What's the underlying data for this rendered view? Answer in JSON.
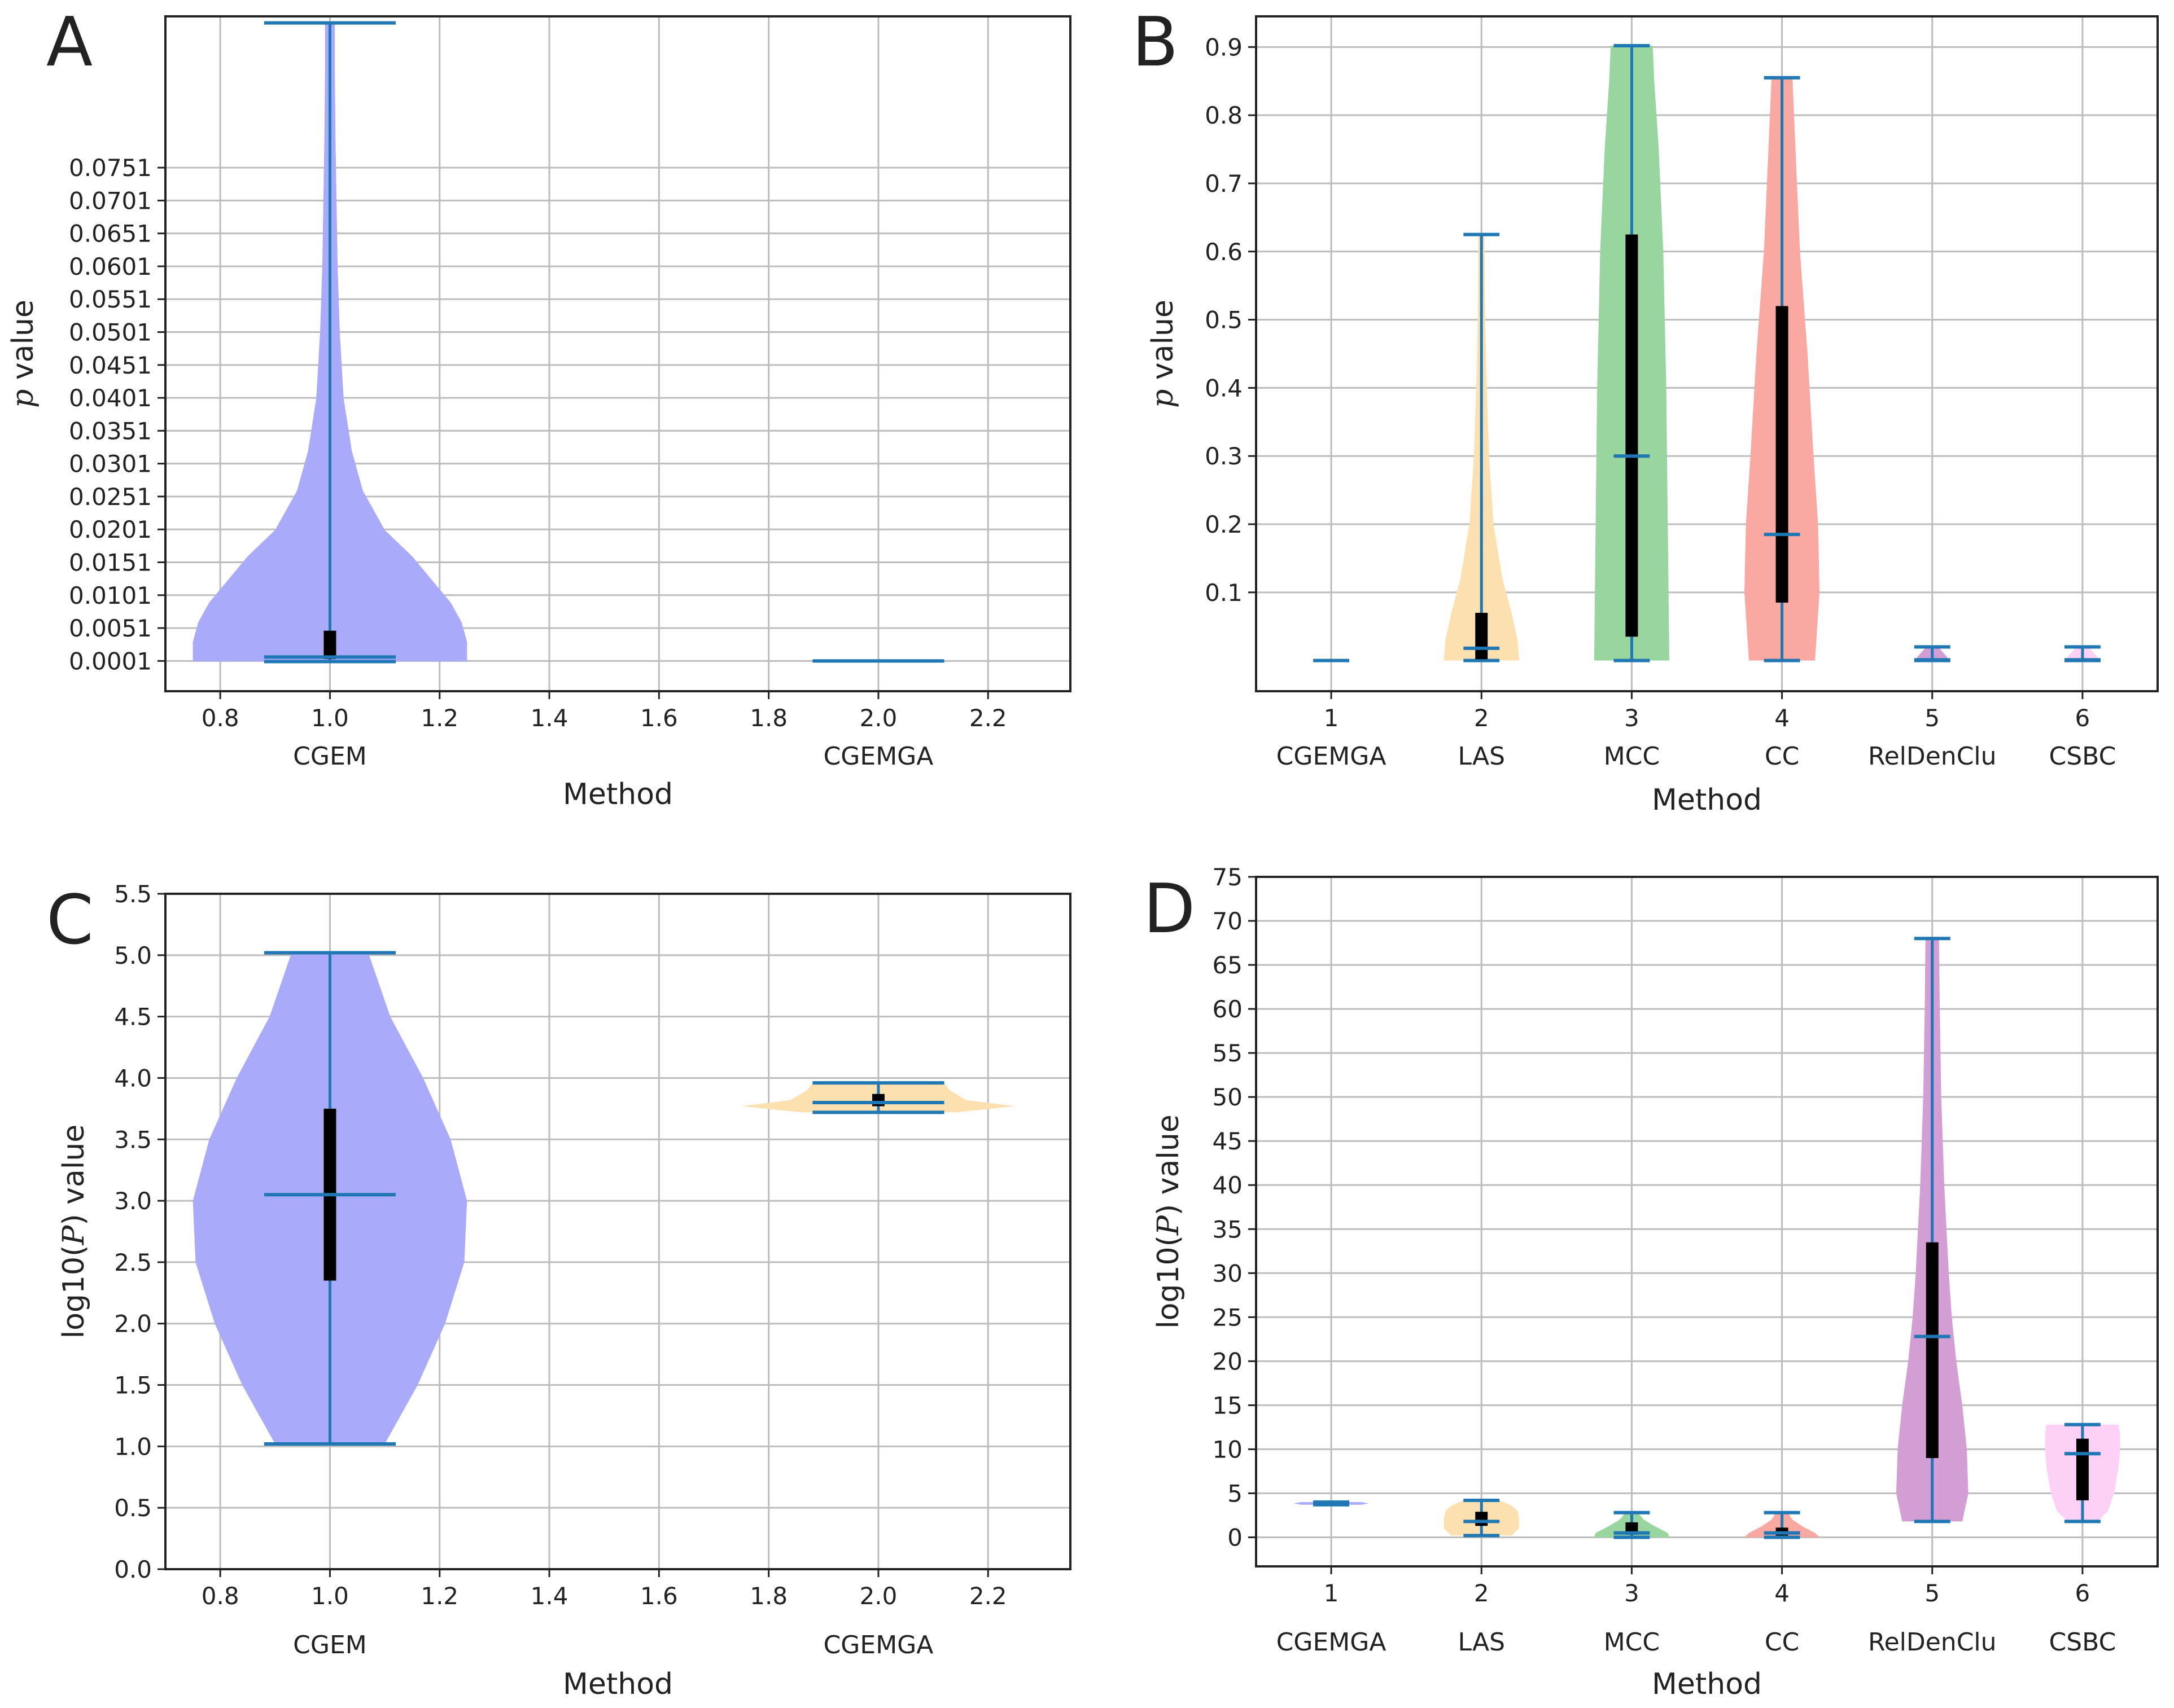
{
  "colors": {
    "whisker": "#1f77b4",
    "box": "#000000",
    "grid": "#bdbdbd",
    "frame": "#222222"
  },
  "chart_data": [
    {
      "panel": "A",
      "type": "violin",
      "xlabel": "Method",
      "ylabel": "p value",
      "ylabel_italic": "p",
      "ylabel_rest": " value",
      "xlim": [
        0.7,
        2.35
      ],
      "xticks": [
        0.8,
        1.0,
        1.2,
        1.4,
        1.6,
        1.8,
        2.0,
        2.2
      ],
      "xtick_labels": [
        "0.8",
        "1.0",
        "1.2",
        "1.4",
        "1.6",
        "1.8",
        "2.0",
        "2.2"
      ],
      "ylim": [
        -0.0045,
        0.0981
      ],
      "yticks": [
        0.0001,
        0.0051,
        0.0101,
        0.0151,
        0.0201,
        0.0251,
        0.0301,
        0.0351,
        0.0401,
        0.0451,
        0.0501,
        0.0551,
        0.0601,
        0.0651,
        0.0701,
        0.0751
      ],
      "ytick_labels": [
        "0.0001",
        "0.0051",
        "0.0101",
        "0.0151",
        "0.0201",
        "0.0251",
        "0.0301",
        "0.0351",
        "0.0401",
        "0.0451",
        "0.0501",
        "0.0551",
        "0.0601",
        "0.0651",
        "0.0701",
        "0.0751"
      ],
      "grid": true,
      "violins": [
        {
          "pos": 1,
          "category": "CGEM",
          "color": "#aaaafa",
          "min": 0.0,
          "max": 0.0971,
          "median": 0.0007,
          "q1": 0.0004,
          "q3": 0.0047,
          "cap_half_width": 0.12,
          "profile": [
            [
              0.0,
              0.25
            ],
            [
              0.003,
              0.25
            ],
            [
              0.006,
              0.24
            ],
            [
              0.009,
              0.22
            ],
            [
              0.012,
              0.19
            ],
            [
              0.016,
              0.15
            ],
            [
              0.02,
              0.1
            ],
            [
              0.026,
              0.06
            ],
            [
              0.032,
              0.04
            ],
            [
              0.04,
              0.025
            ],
            [
              0.05,
              0.018
            ],
            [
              0.06,
              0.014
            ],
            [
              0.07,
              0.012
            ],
            [
              0.08,
              0.01
            ],
            [
              0.09,
              0.009
            ],
            [
              0.0971,
              0.009
            ]
          ]
        },
        {
          "pos": 2,
          "category": "CGEMGA",
          "color": "#fde0b0",
          "min": 0.0001,
          "max": 0.0001,
          "cap_half_width": 0.12
        }
      ]
    },
    {
      "panel": "B",
      "type": "violin",
      "xlabel": "Method",
      "ylabel": "p value",
      "ylabel_italic": "p",
      "ylabel_rest": " value",
      "xlim": [
        0.5,
        6.5
      ],
      "xticks": [
        1,
        2,
        3,
        4,
        5,
        6
      ],
      "xtick_labels": [
        "1",
        "2",
        "3",
        "4",
        "5",
        "6"
      ],
      "ylim": [
        -0.045,
        0.945
      ],
      "yticks": [
        0.1,
        0.2,
        0.3,
        0.4,
        0.5,
        0.6,
        0.7,
        0.8,
        0.9
      ],
      "ytick_labels": [
        "0.1",
        "0.2",
        "0.3",
        "0.4",
        "0.5",
        "0.6",
        "0.7",
        "0.8",
        "0.9"
      ],
      "grid": true,
      "violins": [
        {
          "pos": 1,
          "category": "CGEMGA",
          "color": "#aaaafa",
          "min": 0.0,
          "max": 0.0,
          "cap_half_width": 0.12
        },
        {
          "pos": 2,
          "category": "LAS",
          "color": "#fde0b0",
          "min": 0.0,
          "max": 0.625,
          "median": 0.018,
          "q1": 0.002,
          "q3": 0.07,
          "cap_half_width": 0.12,
          "profile": [
            [
              0.0,
              0.25
            ],
            [
              0.03,
              0.24
            ],
            [
              0.07,
              0.2
            ],
            [
              0.12,
              0.14
            ],
            [
              0.2,
              0.08
            ],
            [
              0.3,
              0.05
            ],
            [
              0.4,
              0.035
            ],
            [
              0.5,
              0.025
            ],
            [
              0.625,
              0.02
            ]
          ]
        },
        {
          "pos": 3,
          "category": "MCC",
          "color": "#99d59f",
          "min": 0.0,
          "max": 0.902,
          "median": 0.3,
          "q1": 0.035,
          "q3": 0.625,
          "cap_half_width": 0.12,
          "profile": [
            [
              0.0,
              0.25
            ],
            [
              0.2,
              0.24
            ],
            [
              0.4,
              0.23
            ],
            [
              0.6,
              0.21
            ],
            [
              0.75,
              0.18
            ],
            [
              0.85,
              0.15
            ],
            [
              0.902,
              0.14
            ]
          ]
        },
        {
          "pos": 4,
          "category": "CC",
          "color": "#f9a8a2",
          "min": 0.0,
          "max": 0.855,
          "median": 0.185,
          "q1": 0.085,
          "q3": 0.52,
          "cap_half_width": 0.12,
          "profile": [
            [
              0.0,
              0.22
            ],
            [
              0.1,
              0.25
            ],
            [
              0.2,
              0.24
            ],
            [
              0.3,
              0.21
            ],
            [
              0.45,
              0.17
            ],
            [
              0.6,
              0.12
            ],
            [
              0.75,
              0.09
            ],
            [
              0.855,
              0.07
            ]
          ]
        },
        {
          "pos": 5,
          "category": "RelDenClu",
          "color": "#d39ed4",
          "min": 0.0,
          "max": 0.02,
          "median": 0.001,
          "cap_half_width": 0.12,
          "profile": [
            [
              0.0,
              0.1
            ],
            [
              0.005,
              0.1
            ],
            [
              0.015,
              0.06
            ],
            [
              0.02,
              0.04
            ]
          ]
        },
        {
          "pos": 6,
          "category": "CSBC",
          "color": "#fdd1f5",
          "min": 0.0,
          "max": 0.02,
          "median": 0.001,
          "cap_half_width": 0.12,
          "profile": [
            [
              0.0,
              0.1
            ],
            [
              0.005,
              0.1
            ],
            [
              0.015,
              0.06
            ],
            [
              0.02,
              0.04
            ]
          ]
        }
      ]
    },
    {
      "panel": "C",
      "type": "violin",
      "xlabel": "Method",
      "ylabel": "log10(P) value",
      "ylabel_pre": "log10(",
      "ylabel_italic": "P",
      "ylabel_post": ") value",
      "xlim": [
        0.7,
        2.35
      ],
      "xticks": [
        0.8,
        1.0,
        1.2,
        1.4,
        1.6,
        1.8,
        2.0,
        2.2
      ],
      "xtick_labels": [
        "0.8",
        "1.0",
        "1.2",
        "1.4",
        "1.6",
        "1.8",
        "2.0",
        "2.2"
      ],
      "ylim": [
        0.0,
        5.5
      ],
      "yticks": [
        0.0,
        0.5,
        1.0,
        1.5,
        2.0,
        2.5,
        3.0,
        3.5,
        4.0,
        4.5,
        5.0,
        5.5
      ],
      "ytick_labels": [
        "0.0",
        "0.5",
        "1.0",
        "1.5",
        "2.0",
        "2.5",
        "3.0",
        "3.5",
        "4.0",
        "4.5",
        "5.0",
        "5.5"
      ],
      "grid": true,
      "violins": [
        {
          "pos": 1,
          "category": "CGEM",
          "color": "#aaaafa",
          "min": 1.02,
          "max": 5.02,
          "median": 3.05,
          "q1": 2.35,
          "q3": 3.75,
          "cap_half_width": 0.12,
          "profile": [
            [
              1.02,
              0.1
            ],
            [
              1.5,
              0.16
            ],
            [
              2.0,
              0.21
            ],
            [
              2.5,
              0.245
            ],
            [
              3.0,
              0.25
            ],
            [
              3.5,
              0.22
            ],
            [
              4.0,
              0.17
            ],
            [
              4.5,
              0.11
            ],
            [
              5.02,
              0.07
            ]
          ]
        },
        {
          "pos": 2,
          "category": "CGEMGA",
          "color": "#fde0b0",
          "min": 3.72,
          "max": 3.96,
          "median": 3.8,
          "q1": 3.77,
          "q3": 3.87,
          "cap_half_width": 0.12,
          "profile": [
            [
              3.72,
              0.14
            ],
            [
              3.77,
              0.25
            ],
            [
              3.82,
              0.16
            ],
            [
              3.9,
              0.13
            ],
            [
              3.96,
              0.12
            ]
          ]
        }
      ]
    },
    {
      "panel": "D",
      "type": "violin",
      "xlabel": "Method",
      "ylabel": "log10(P) value",
      "ylabel_pre": "log10(",
      "ylabel_italic": "P",
      "ylabel_post": ") value",
      "xlim": [
        0.5,
        6.5
      ],
      "xticks": [
        1,
        2,
        3,
        4,
        5,
        6
      ],
      "xtick_labels": [
        "1",
        "2",
        "3",
        "4",
        "5",
        "6"
      ],
      "ylim": [
        -3.3,
        75.0
      ],
      "yticks": [
        0,
        5,
        10,
        15,
        20,
        25,
        30,
        35,
        40,
        45,
        50,
        55,
        60,
        65,
        70,
        75
      ],
      "ytick_labels": [
        "0",
        "5",
        "10",
        "15",
        "20",
        "25",
        "30",
        "35",
        "40",
        "45",
        "50",
        "55",
        "60",
        "65",
        "70",
        "75"
      ],
      "grid": true,
      "violins": [
        {
          "pos": 1,
          "category": "CGEMGA",
          "color": "#aaaafa",
          "min": 3.7,
          "max": 4.0,
          "median": 3.85,
          "cap_half_width": 0.12,
          "profile": [
            [
              3.7,
              0.2
            ],
            [
              3.85,
              0.25
            ],
            [
              4.0,
              0.2
            ]
          ]
        },
        {
          "pos": 2,
          "category": "LAS",
          "color": "#fde0b0",
          "min": 0.2,
          "max": 4.2,
          "median": 1.8,
          "q1": 1.3,
          "q3": 2.9,
          "cap_half_width": 0.12,
          "profile": [
            [
              0.2,
              0.2
            ],
            [
              1.0,
              0.25
            ],
            [
              2.0,
              0.25
            ],
            [
              3.0,
              0.24
            ],
            [
              3.6,
              0.2
            ],
            [
              4.2,
              0.12
            ]
          ]
        },
        {
          "pos": 3,
          "category": "MCC",
          "color": "#99d59f",
          "min": 0.0,
          "max": 2.8,
          "median": 0.5,
          "q1": 0.3,
          "q3": 1.7,
          "cap_half_width": 0.12,
          "profile": [
            [
              0.0,
              0.25
            ],
            [
              0.5,
              0.24
            ],
            [
              1.2,
              0.16
            ],
            [
              2.0,
              0.08
            ],
            [
              2.8,
              0.04
            ]
          ]
        },
        {
          "pos": 4,
          "category": "CC",
          "color": "#f9a8a2",
          "min": 0.0,
          "max": 2.8,
          "median": 0.5,
          "q1": 0.2,
          "q3": 1.1,
          "cap_half_width": 0.12,
          "profile": [
            [
              0.0,
              0.25
            ],
            [
              0.5,
              0.22
            ],
            [
              1.2,
              0.14
            ],
            [
              2.0,
              0.07
            ],
            [
              2.8,
              0.04
            ]
          ]
        },
        {
          "pos": 5,
          "category": "RelDenClu",
          "color": "#d39ed4",
          "min": 1.8,
          "max": 68.0,
          "median": 22.8,
          "q1": 9.0,
          "q3": 33.5,
          "cap_half_width": 0.12,
          "profile": [
            [
              1.8,
              0.2
            ],
            [
              5.0,
              0.24
            ],
            [
              10.0,
              0.23
            ],
            [
              15.0,
              0.2
            ],
            [
              20.0,
              0.16
            ],
            [
              25.0,
              0.13
            ],
            [
              30.0,
              0.11
            ],
            [
              40.0,
              0.08
            ],
            [
              50.0,
              0.06
            ],
            [
              60.0,
              0.05
            ],
            [
              68.0,
              0.045
            ]
          ]
        },
        {
          "pos": 6,
          "category": "CSBC",
          "color": "#fdd1f5",
          "min": 1.8,
          "max": 12.8,
          "median": 9.5,
          "q1": 4.2,
          "q3": 11.2,
          "cap_half_width": 0.12,
          "profile": [
            [
              1.8,
              0.1
            ],
            [
              3.0,
              0.17
            ],
            [
              5.0,
              0.21
            ],
            [
              8.0,
              0.24
            ],
            [
              10.0,
              0.25
            ],
            [
              11.5,
              0.25
            ],
            [
              12.8,
              0.24
            ]
          ]
        }
      ]
    }
  ]
}
